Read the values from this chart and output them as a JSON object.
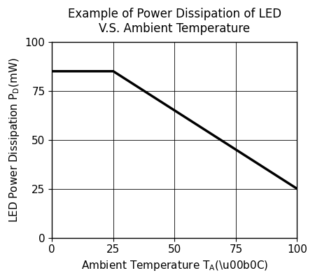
{
  "title_line1": "Example of Power Dissipation of LED",
  "title_line2": "V.S. Ambient Temperature",
  "x_data": [
    0,
    25,
    100
  ],
  "y_data": [
    85,
    85,
    25
  ],
  "xlim": [
    0,
    100
  ],
  "ylim": [
    0,
    100
  ],
  "xticks": [
    0,
    25,
    50,
    75,
    100
  ],
  "yticks": [
    0,
    25,
    50,
    75,
    100
  ],
  "line_color": "#000000",
  "line_width": 2.5,
  "bg_color": "#ffffff",
  "grid_color": "#000000",
  "title_fontsize": 12,
  "label_fontsize": 11,
  "tick_fontsize": 11
}
